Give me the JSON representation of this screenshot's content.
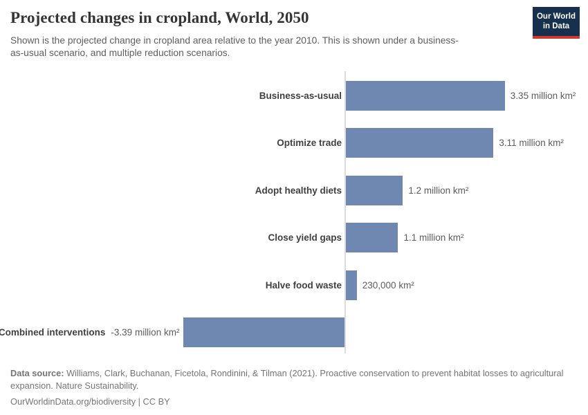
{
  "header": {
    "title": "Projected changes in cropland, World, 2050",
    "subtitle": "Shown is the projected change in cropland area relative to the year 2010. This is shown under a business-as-usual scenario, and multiple reduction scenarios.",
    "logo": {
      "line1": "Our World",
      "line2": "in Data"
    }
  },
  "chart_data": {
    "type": "bar",
    "orientation": "horizontal",
    "title": "Projected changes in cropland, World, 2050",
    "unit": "million km²",
    "categories": [
      "Business-as-usual",
      "Optimize trade",
      "Adopt healthy diets",
      "Close yield gaps",
      "Halve food waste",
      "Combined interventions"
    ],
    "values": [
      3.35,
      3.11,
      1.2,
      1.1,
      0.23,
      -3.39
    ],
    "value_labels": [
      "3.35 million km²",
      "3.11 million km²",
      "1.2 million km²",
      "1.1 million km²",
      "230,000 km²",
      "-3.39 million km²"
    ],
    "xlim": [
      -3.39,
      3.35
    ],
    "baseline": 0,
    "grid": false,
    "legend": "none"
  },
  "colors": {
    "bar": "#6f88b1",
    "axis": "#dcdcdc",
    "logo_bg": "#16304e",
    "logo_red": "#cf3a2f"
  },
  "footer": {
    "source_label": "Data source:",
    "source_text": " Williams, Clark, Buchanan, Ficetola, Rondinini, & Tilman (2021). Proactive conservation to prevent habitat losses to agricultural expansion. Nature Sustainability.",
    "attribution": "OurWorldinData.org/biodiversity | CC BY"
  }
}
